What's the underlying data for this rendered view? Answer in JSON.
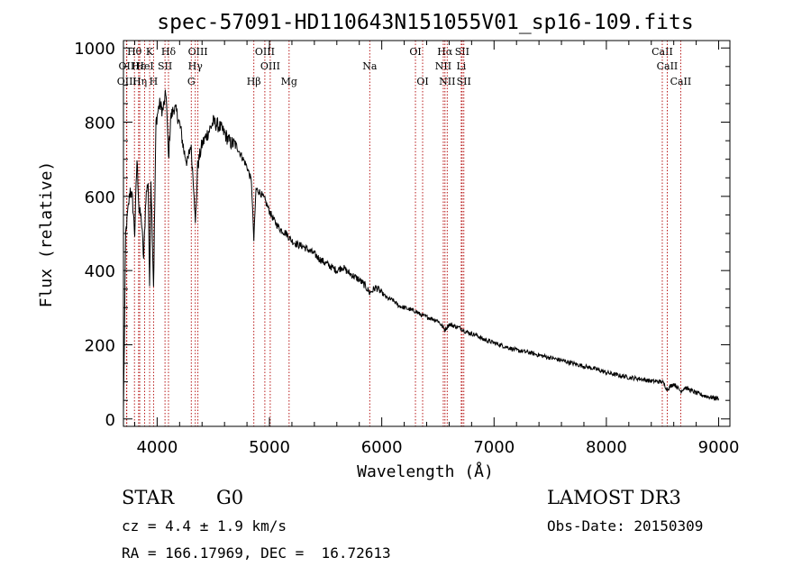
{
  "chart_data": {
    "type": "line",
    "title": "spec-57091-HD110643N151055V01_sp16-109.fits",
    "xlabel": "Wavelength (Å)",
    "ylabel": "Flux (relative)",
    "xlim": [
      3700,
      9100
    ],
    "ylim": [
      -20,
      1020
    ],
    "xticks": [
      4000,
      5000,
      6000,
      7000,
      8000,
      9000
    ],
    "xtick_labels": [
      "4000",
      "5000",
      "6000",
      "7000",
      "8000",
      "9000"
    ],
    "yticks": [
      0,
      200,
      400,
      600,
      800,
      1000
    ],
    "ytick_labels": [
      "0",
      "200",
      "400",
      "600",
      "800",
      "1000"
    ],
    "grid": false,
    "series": [
      {
        "name": "spectrum",
        "x": [
          3700,
          3720,
          3740,
          3760,
          3780,
          3800,
          3820,
          3840,
          3860,
          3880,
          3900,
          3920,
          3933,
          3945,
          3968,
          3990,
          4020,
          4050,
          4080,
          4101,
          4120,
          4150,
          4180,
          4210,
          4240,
          4270,
          4300,
          4330,
          4340,
          4360,
          4400,
          4450,
          4500,
          4550,
          4600,
          4650,
          4700,
          4750,
          4800,
          4840,
          4861,
          4880,
          4920,
          4960,
          5000,
          5050,
          5100,
          5150,
          5200,
          5250,
          5300,
          5350,
          5400,
          5450,
          5500,
          5550,
          5600,
          5650,
          5700,
          5750,
          5800,
          5850,
          5893,
          5950,
          6000,
          6050,
          6100,
          6150,
          6200,
          6250,
          6300,
          6350,
          6400,
          6450,
          6500,
          6563,
          6600,
          6650,
          6700,
          6750,
          6800,
          6850,
          6900,
          6950,
          7000,
          7100,
          7200,
          7300,
          7400,
          7500,
          7600,
          7700,
          7800,
          7900,
          8000,
          8100,
          8200,
          8300,
          8400,
          8498,
          8542,
          8600,
          8662,
          8700,
          8800,
          8900,
          9000
        ],
        "values": [
          20,
          500,
          560,
          620,
          590,
          500,
          700,
          560,
          540,
          430,
          600,
          640,
          340,
          650,
          360,
          800,
          850,
          830,
          880,
          700,
          810,
          840,
          820,
          780,
          720,
          690,
          740,
          610,
          520,
          680,
          740,
          770,
          800,
          790,
          770,
          745,
          740,
          710,
          680,
          640,
          480,
          620,
          610,
          590,
          560,
          530,
          510,
          500,
          480,
          470,
          465,
          455,
          445,
          430,
          420,
          410,
          400,
          410,
          395,
          385,
          375,
          360,
          340,
          355,
          340,
          325,
          320,
          305,
          300,
          295,
          290,
          280,
          275,
          270,
          265,
          240,
          255,
          250,
          245,
          235,
          230,
          225,
          215,
          210,
          205,
          195,
          185,
          180,
          172,
          165,
          158,
          150,
          142,
          135,
          125,
          118,
          112,
          108,
          102,
          100,
          80,
          95,
          75,
          85,
          70,
          60,
          55
        ]
      }
    ],
    "lines": [
      {
        "name": "Hθ",
        "x": 3798,
        "row": 1
      },
      {
        "name": "OII",
        "x": 3727,
        "row": 2
      },
      {
        "name": "OIII",
        "x": 3730,
        "row": 3
      },
      {
        "name": "Hε",
        "x": 3835,
        "row": 2
      },
      {
        "name": "Hη",
        "x": 3845,
        "row": 3
      },
      {
        "name": "HeI",
        "x": 3889,
        "row": 2
      },
      {
        "name": "K",
        "x": 3933,
        "row": 1
      },
      {
        "name": "H",
        "x": 3968,
        "row": 3
      },
      {
        "name": "SII",
        "x": 4070,
        "row": 2
      },
      {
        "name": "Hδ",
        "x": 4101,
        "row": 1
      },
      {
        "name": "OIII",
        "x": 4363,
        "row": 1
      },
      {
        "name": "Hγ",
        "x": 4340,
        "row": 2
      },
      {
        "name": "G",
        "x": 4304,
        "row": 3
      },
      {
        "name": "OIII",
        "x": 4959,
        "row": 1
      },
      {
        "name": "OIII",
        "x": 5007,
        "row": 2
      },
      {
        "name": "Hβ",
        "x": 4861,
        "row": 3
      },
      {
        "name": "Mg",
        "x": 5175,
        "row": 3
      },
      {
        "name": "Na",
        "x": 5893,
        "row": 2
      },
      {
        "name": "OI",
        "x": 6300,
        "row": 1
      },
      {
        "name": "OI",
        "x": 6364,
        "row": 3
      },
      {
        "name": "Hα",
        "x": 6563,
        "row": 1
      },
      {
        "name": "NII",
        "x": 6548,
        "row": 2
      },
      {
        "name": "NII",
        "x": 6583,
        "row": 3
      },
      {
        "name": "SII",
        "x": 6716,
        "row": 1
      },
      {
        "name": "Li",
        "x": 6708,
        "row": 2
      },
      {
        "name": "SII",
        "x": 6731,
        "row": 3
      },
      {
        "name": "CaII",
        "x": 8498,
        "row": 1
      },
      {
        "name": "CaII",
        "x": 8542,
        "row": 2
      },
      {
        "name": "CaII",
        "x": 8662,
        "row": 3
      }
    ]
  },
  "info": {
    "class": "STAR",
    "subclass": "G0",
    "survey": "LAMOST DR3",
    "cz": "cz = 4.4 ± 1.9 km/s",
    "obs_date": "Obs-Date: 20150309",
    "coords": "RA = 166.17969, DEC =  16.72613"
  }
}
